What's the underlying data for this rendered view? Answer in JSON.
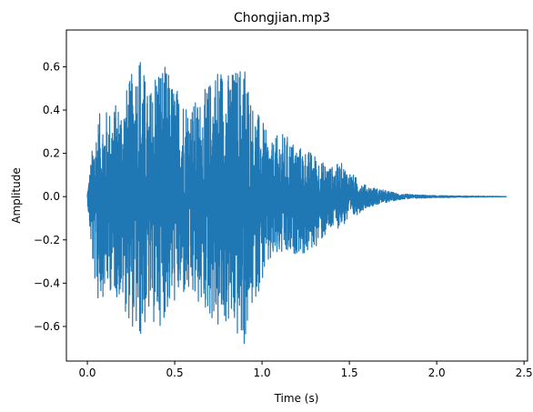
{
  "chart_data": {
    "type": "line",
    "title": "Chongjian.mp3",
    "xlabel": "Time (s)",
    "ylabel": "Amplitude",
    "xlim": [
      -0.12,
      2.52
    ],
    "ylim": [
      -0.76,
      0.77
    ],
    "xticks": [
      0.0,
      0.5,
      1.0,
      1.5,
      2.0,
      2.5
    ],
    "xtick_labels": [
      "0.0",
      "0.5",
      "1.0",
      "1.5",
      "2.0",
      "2.5"
    ],
    "yticks": [
      -0.6,
      -0.4,
      -0.2,
      0.0,
      0.2,
      0.4,
      0.6
    ],
    "ytick_labels": [
      "−0.6",
      "−0.4",
      "−0.2",
      "0.0",
      "0.2",
      "0.4",
      "0.6"
    ],
    "grid": false,
    "legend": "none",
    "duration": 2.4,
    "color": "#1f77b4",
    "series": [
      {
        "x": [
          0.0,
          0.03,
          0.06,
          0.1,
          0.14,
          0.2,
          0.25,
          0.3,
          0.35,
          0.4,
          0.45,
          0.5,
          0.55,
          0.6,
          0.65,
          0.7,
          0.75,
          0.8,
          0.85,
          0.9,
          0.95,
          1.0,
          1.05,
          1.1,
          1.15,
          1.2,
          1.25,
          1.3,
          1.35,
          1.4,
          1.45,
          1.5,
          1.55,
          1.6,
          1.65,
          1.7,
          1.75,
          1.8,
          1.9,
          2.0,
          2.1,
          2.2,
          2.3,
          2.4
        ],
        "upper": [
          0.02,
          0.24,
          0.38,
          0.4,
          0.42,
          0.46,
          0.56,
          0.71,
          0.46,
          0.66,
          0.6,
          0.52,
          0.48,
          0.44,
          0.46,
          0.54,
          0.64,
          0.58,
          0.6,
          0.65,
          0.42,
          0.36,
          0.24,
          0.3,
          0.28,
          0.24,
          0.22,
          0.2,
          0.16,
          0.14,
          0.16,
          0.12,
          0.08,
          0.05,
          0.04,
          0.03,
          0.02,
          0.012,
          0.008,
          0.005,
          0.004,
          0.003,
          0.002,
          0.001
        ],
        "lower": [
          -0.02,
          -0.34,
          -0.5,
          -0.45,
          -0.44,
          -0.5,
          -0.6,
          -0.68,
          -0.56,
          -0.62,
          -0.55,
          -0.5,
          -0.48,
          -0.5,
          -0.52,
          -0.56,
          -0.64,
          -0.6,
          -0.66,
          -0.71,
          -0.5,
          -0.4,
          -0.32,
          -0.28,
          -0.3,
          -0.26,
          -0.28,
          -0.24,
          -0.2,
          -0.16,
          -0.14,
          -0.12,
          -0.08,
          -0.05,
          -0.04,
          -0.03,
          -0.02,
          -0.012,
          -0.008,
          -0.005,
          -0.004,
          -0.003,
          -0.002,
          -0.001
        ]
      }
    ]
  }
}
